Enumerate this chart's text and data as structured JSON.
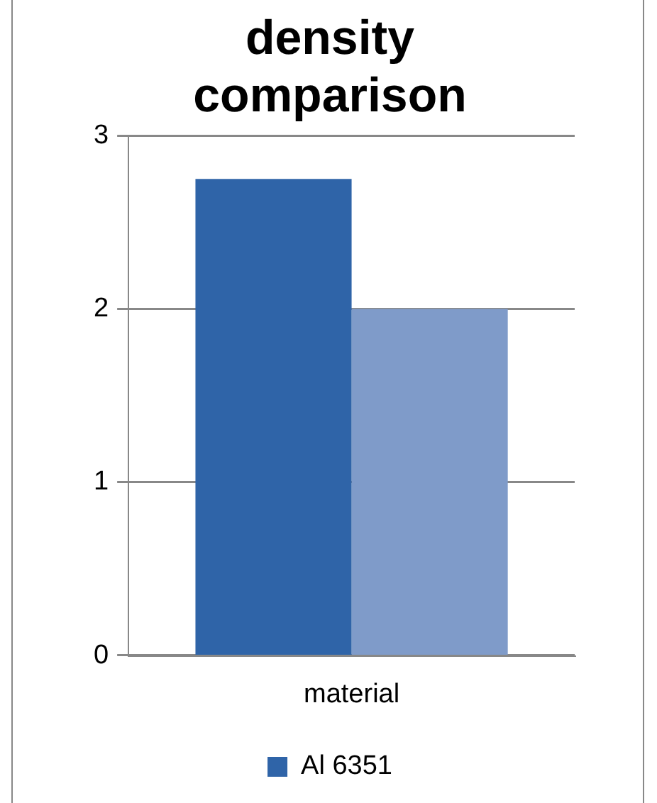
{
  "chart_data": {
    "type": "bar",
    "title": "density comparison",
    "categories": [
      "material"
    ],
    "series": [
      {
        "name": "Al 6351",
        "color": "#2f64a8",
        "values": [
          2.75
        ]
      },
      {
        "color": "#7f9bc9",
        "values": [
          2.0
        ]
      }
    ],
    "ylim": [
      0,
      3
    ],
    "yticks": [
      0,
      1,
      2,
      3
    ],
    "grid": "y",
    "legend": "bottom"
  }
}
